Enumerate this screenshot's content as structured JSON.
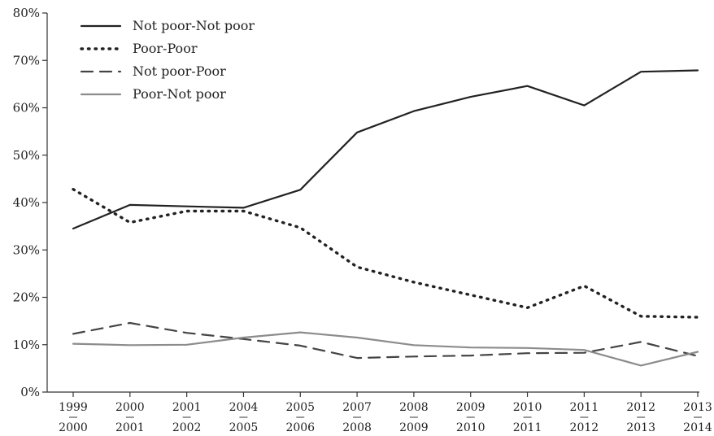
{
  "chart_data": {
    "type": "line",
    "title": "",
    "xlabel": "",
    "ylabel": "",
    "ylim": [
      0,
      80
    ],
    "y_ticks": [
      "0%",
      "10%",
      "20%",
      "30%",
      "40%",
      "50%",
      "60%",
      "70%",
      "80%"
    ],
    "categories": [
      {
        "top": "1999",
        "bottom": "2000"
      },
      {
        "top": "2000",
        "bottom": "2001"
      },
      {
        "top": "2001",
        "bottom": "2002"
      },
      {
        "top": "2004",
        "bottom": "2005"
      },
      {
        "top": "2005",
        "bottom": "2006"
      },
      {
        "top": "2007",
        "bottom": "2008"
      },
      {
        "top": "2008",
        "bottom": "2009"
      },
      {
        "top": "2009",
        "bottom": "2010"
      },
      {
        "top": "2010",
        "bottom": "2011"
      },
      {
        "top": "2011",
        "bottom": "2012"
      },
      {
        "top": "2012",
        "bottom": "2013"
      },
      {
        "top": "2013",
        "bottom": "2014"
      }
    ],
    "grid": false,
    "legend_position": "top-left",
    "series": [
      {
        "name": "Not poor-Not poor",
        "style": "solid",
        "color": "#222222",
        "values": [
          34.5,
          39.5,
          39.2,
          38.9,
          42.7,
          54.8,
          59.3,
          62.3,
          64.6,
          60.5,
          67.6,
          67.9
        ]
      },
      {
        "name": "Poor-Poor",
        "style": "dotted",
        "color": "#222222",
        "values": [
          42.8,
          35.8,
          38.2,
          38.2,
          34.7,
          26.4,
          23.2,
          20.5,
          17.8,
          22.4,
          16.0,
          15.8
        ]
      },
      {
        "name": "Not poor-Poor",
        "style": "dashed",
        "color": "#444444",
        "values": [
          12.3,
          14.6,
          12.5,
          11.2,
          9.8,
          7.2,
          7.5,
          7.7,
          8.2,
          8.3,
          10.6,
          7.6
        ]
      },
      {
        "name": "Poor-Not poor",
        "style": "solid",
        "color": "#8c8c8c",
        "values": [
          10.2,
          9.9,
          10.0,
          11.5,
          12.6,
          11.5,
          9.9,
          9.4,
          9.3,
          8.9,
          5.6,
          8.5
        ]
      }
    ]
  }
}
